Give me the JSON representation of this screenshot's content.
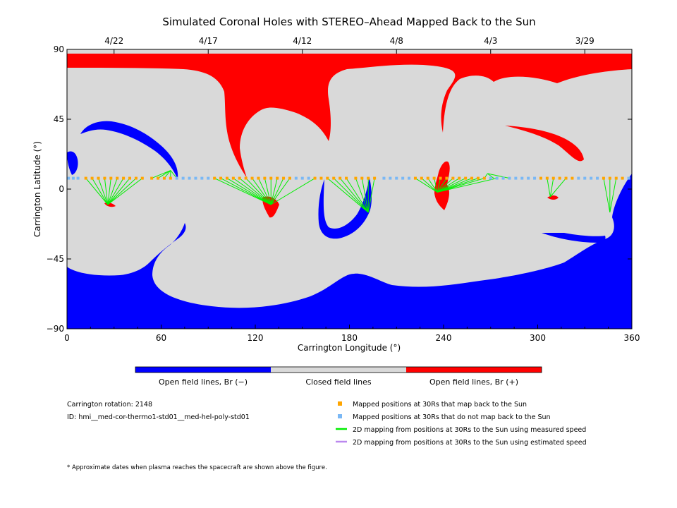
{
  "chart_data": {
    "type": "map",
    "title": "Simulated Coronal Holes with STEREO–Ahead Mapped Back to the Sun",
    "xlabel": "Carrington Longitude (°)",
    "ylabel": "Carrington Latitude (°)",
    "xlim": [
      0,
      360
    ],
    "ylim": [
      -90,
      90
    ],
    "x_ticks": [
      0,
      60,
      120,
      180,
      240,
      300,
      360
    ],
    "y_ticks": [
      90,
      45,
      0,
      -45,
      -90
    ],
    "top_date_ticks": [
      {
        "label": "4/22",
        "x": 30
      },
      {
        "label": "4/17",
        "x": 90
      },
      {
        "label": "4/12",
        "x": 150
      },
      {
        "label": "4/8",
        "x": 210
      },
      {
        "label": "4/3",
        "x": 270
      },
      {
        "label": "3/29",
        "x": 330
      }
    ],
    "colors": {
      "open_negative": "#0000ff",
      "closed": "#d9d9d9",
      "open_positive": "#ff0000",
      "mapped": "#ffa500",
      "not_mapped": "#7ab8f5",
      "measured_line": "#00ee00",
      "estimated_line": "#bb88ee"
    },
    "colorbar": [
      {
        "label": "Open field lines, Br (−)",
        "color": "#0000ff"
      },
      {
        "label": "Closed field lines",
        "color": "#d9d9d9"
      },
      {
        "label": "Open field lines, Br (+)",
        "color": "#ff0000"
      }
    ],
    "spacecraft_latitude": 7,
    "mapped_points": [
      [
        12,
        7
      ],
      [
        16,
        7
      ],
      [
        20,
        7
      ],
      [
        24,
        7
      ],
      [
        28,
        7
      ],
      [
        32,
        7
      ],
      [
        36,
        7
      ],
      [
        40,
        7
      ],
      [
        44,
        7
      ],
      [
        48,
        7
      ],
      [
        54,
        7
      ],
      [
        58,
        7
      ],
      [
        62,
        7
      ],
      [
        66,
        7
      ],
      [
        94,
        7
      ],
      [
        98,
        7
      ],
      [
        102,
        7
      ],
      [
        106,
        7
      ],
      [
        110,
        7
      ],
      [
        114,
        7
      ],
      [
        118,
        7
      ],
      [
        122,
        7
      ],
      [
        126,
        7
      ],
      [
        130,
        7
      ],
      [
        134,
        7
      ],
      [
        138,
        7
      ],
      [
        142,
        7
      ],
      [
        158,
        7
      ],
      [
        162,
        7
      ],
      [
        166,
        7
      ],
      [
        170,
        7
      ],
      [
        174,
        7
      ],
      [
        178,
        7
      ],
      [
        184,
        7
      ],
      [
        188,
        7
      ],
      [
        192,
        7
      ],
      [
        196,
        7
      ],
      [
        222,
        7
      ],
      [
        226,
        7
      ],
      [
        230,
        7
      ],
      [
        234,
        7
      ],
      [
        238,
        7
      ],
      [
        242,
        7
      ],
      [
        246,
        7
      ],
      [
        250,
        7
      ],
      [
        254,
        7
      ],
      [
        258,
        7
      ],
      [
        262,
        7
      ],
      [
        266,
        7
      ],
      [
        302,
        7
      ],
      [
        306,
        7
      ],
      [
        310,
        7
      ],
      [
        314,
        7
      ],
      [
        318,
        7
      ],
      [
        322,
        7
      ],
      [
        342,
        7
      ],
      [
        346,
        7
      ],
      [
        350,
        7
      ],
      [
        354,
        7
      ]
    ],
    "unmapped_points": [
      [
        1,
        7
      ],
      [
        4,
        7
      ],
      [
        7,
        7
      ],
      [
        70,
        7
      ],
      [
        74,
        7
      ],
      [
        78,
        7
      ],
      [
        82,
        7
      ],
      [
        86,
        7
      ],
      [
        90,
        7
      ],
      [
        146,
        7
      ],
      [
        150,
        7
      ],
      [
        154,
        7
      ],
      [
        202,
        7
      ],
      [
        206,
        7
      ],
      [
        210,
        7
      ],
      [
        214,
        7
      ],
      [
        218,
        7
      ],
      [
        270,
        7
      ],
      [
        274,
        7
      ],
      [
        278,
        7
      ],
      [
        282,
        7
      ],
      [
        286,
        7
      ],
      [
        290,
        7
      ],
      [
        294,
        7
      ],
      [
        298,
        7
      ],
      [
        326,
        7
      ],
      [
        330,
        7
      ],
      [
        334,
        7
      ],
      [
        338,
        7
      ],
      [
        358,
        7
      ]
    ],
    "measured_mappings": [
      {
        "from": [
          [
            12,
            7
          ],
          [
            16,
            7
          ],
          [
            20,
            7
          ],
          [
            24,
            7
          ],
          [
            28,
            7
          ],
          [
            32,
            7
          ],
          [
            36,
            7
          ],
          [
            40,
            7
          ],
          [
            44,
            7
          ],
          [
            48,
            7
          ]
        ],
        "to": [
          26,
          -10
        ]
      },
      {
        "from": [
          [
            54,
            7
          ],
          [
            58,
            7
          ],
          [
            62,
            7
          ],
          [
            66,
            7
          ],
          [
            70,
            7
          ]
        ],
        "to": [
          66,
          12
        ]
      },
      {
        "from": [
          [
            94,
            7
          ],
          [
            98,
            7
          ],
          [
            102,
            7
          ],
          [
            106,
            7
          ],
          [
            110,
            7
          ],
          [
            114,
            7
          ],
          [
            118,
            7
          ],
          [
            122,
            7
          ],
          [
            126,
            7
          ],
          [
            130,
            7
          ],
          [
            134,
            7
          ],
          [
            138,
            7
          ],
          [
            142,
            7
          ],
          [
            158,
            7
          ]
        ],
        "to": [
          130,
          -10
        ]
      },
      {
        "from": [
          [
            166,
            7
          ],
          [
            170,
            7
          ],
          [
            174,
            7
          ],
          [
            178,
            7
          ],
          [
            184,
            7
          ],
          [
            188,
            7
          ],
          [
            192,
            7
          ],
          [
            196,
            7
          ]
        ],
        "to": [
          192,
          -15
        ]
      },
      {
        "from": [
          [
            222,
            7
          ],
          [
            226,
            7
          ],
          [
            230,
            7
          ],
          [
            234,
            7
          ],
          [
            238,
            7
          ],
          [
            242,
            7
          ],
          [
            246,
            7
          ],
          [
            250,
            7
          ],
          [
            254,
            7
          ],
          [
            258,
            7
          ],
          [
            262,
            7
          ],
          [
            266,
            7
          ],
          [
            274,
            7
          ]
        ],
        "to": [
          236,
          -2
        ]
      },
      {
        "from": [
          [
            266,
            7
          ],
          [
            272,
            7
          ],
          [
            282,
            7
          ]
        ],
        "to": [
          268,
          10
        ]
      },
      {
        "from": [
          [
            306,
            7
          ],
          [
            310,
            7
          ],
          [
            318,
            7
          ]
        ],
        "to": [
          308,
          -5
        ]
      },
      {
        "from": [
          [
            342,
            7
          ],
          [
            346,
            7
          ],
          [
            350,
            7
          ]
        ],
        "to": [
          346,
          -15
        ]
      }
    ],
    "legend": [
      {
        "label": "Mapped positions at 30Rs that map back to the Sun",
        "marker": "square",
        "color": "#ffa500"
      },
      {
        "label": "Mapped positions at 30Rs that do not map back to the Sun",
        "marker": "square",
        "color": "#7ab8f5"
      },
      {
        "label": "2D mapping from positions at 30Rs to the Sun using measured speed",
        "marker": "line",
        "color": "#00ee00"
      },
      {
        "label": "2D mapping from positions at 30Rs to the Sun using estimated speed",
        "marker": "line",
        "color": "#bb88ee"
      }
    ],
    "grid": false
  },
  "info": {
    "carrington_rotation": "Carrington rotation: 2148",
    "model_id": "ID: hmi__med-cor-thermo1-std01__med-hel-poly-std01"
  },
  "footnote": "* Approximate dates when plasma reaches the spacecraft are shown above the figure."
}
